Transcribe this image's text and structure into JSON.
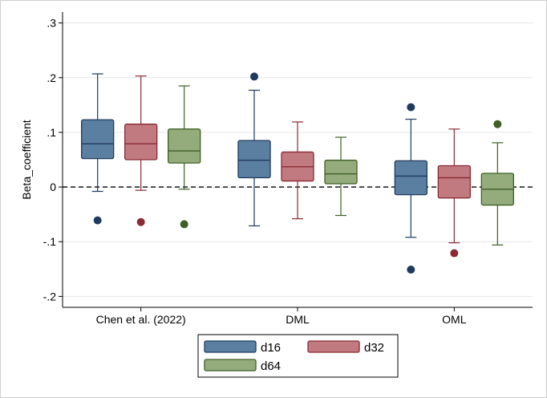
{
  "chart_data": {
    "type": "box",
    "title": "",
    "xlabel": "",
    "ylabel": "Beta_coefficient",
    "ylim": [
      -0.22,
      0.32
    ],
    "yticks": [
      -0.2,
      -0.1,
      0,
      0.1,
      0.2,
      0.3
    ],
    "ytick_labels": [
      "-.2",
      "-.1",
      "0",
      ".1",
      ".2",
      ".3"
    ],
    "grid": true,
    "reference_line": {
      "y": 0,
      "style": "dashed"
    },
    "legend_placement": "bottom",
    "categories": [
      "Chen et al. (2022)",
      "DML",
      "OML"
    ],
    "series": [
      {
        "name": "d16",
        "color": "#5b7fa0",
        "outlier_color": "#1f3a5f",
        "boxes": [
          {
            "whisker_low": -0.008,
            "q1": 0.052,
            "median": 0.079,
            "q3": 0.123,
            "whisker_high": 0.207,
            "outliers": [
              -0.061
            ]
          },
          {
            "whisker_low": -0.071,
            "q1": 0.017,
            "median": 0.049,
            "q3": 0.085,
            "whisker_high": 0.177,
            "outliers": [
              0.202
            ]
          },
          {
            "whisker_low": -0.092,
            "q1": -0.014,
            "median": 0.02,
            "q3": 0.048,
            "whisker_high": 0.124,
            "outliers": [
              0.146,
              -0.151
            ]
          }
        ]
      },
      {
        "name": "d32",
        "color": "#c07a80",
        "outlier_color": "#8b2a35",
        "boxes": [
          {
            "whisker_low": -0.006,
            "q1": 0.05,
            "median": 0.079,
            "q3": 0.115,
            "whisker_high": 0.203,
            "outliers": [
              -0.064
            ]
          },
          {
            "whisker_low": -0.058,
            "q1": 0.011,
            "median": 0.037,
            "q3": 0.064,
            "whisker_high": 0.119,
            "outliers": []
          },
          {
            "whisker_low": -0.102,
            "q1": -0.02,
            "median": 0.017,
            "q3": 0.039,
            "whisker_high": 0.106,
            "outliers": [
              -0.121
            ]
          }
        ]
      },
      {
        "name": "d64",
        "color": "#94ac7c",
        "outlier_color": "#3f5f25",
        "boxes": [
          {
            "whisker_low": -0.004,
            "q1": 0.044,
            "median": 0.066,
            "q3": 0.106,
            "whisker_high": 0.185,
            "outliers": [
              -0.068
            ]
          },
          {
            "whisker_low": -0.052,
            "q1": 0.006,
            "median": 0.024,
            "q3": 0.049,
            "whisker_high": 0.091,
            "outliers": []
          },
          {
            "whisker_low": -0.106,
            "q1": -0.033,
            "median": -0.004,
            "q3": 0.025,
            "whisker_high": 0.081,
            "outliers": [
              0.115
            ]
          }
        ]
      }
    ]
  }
}
